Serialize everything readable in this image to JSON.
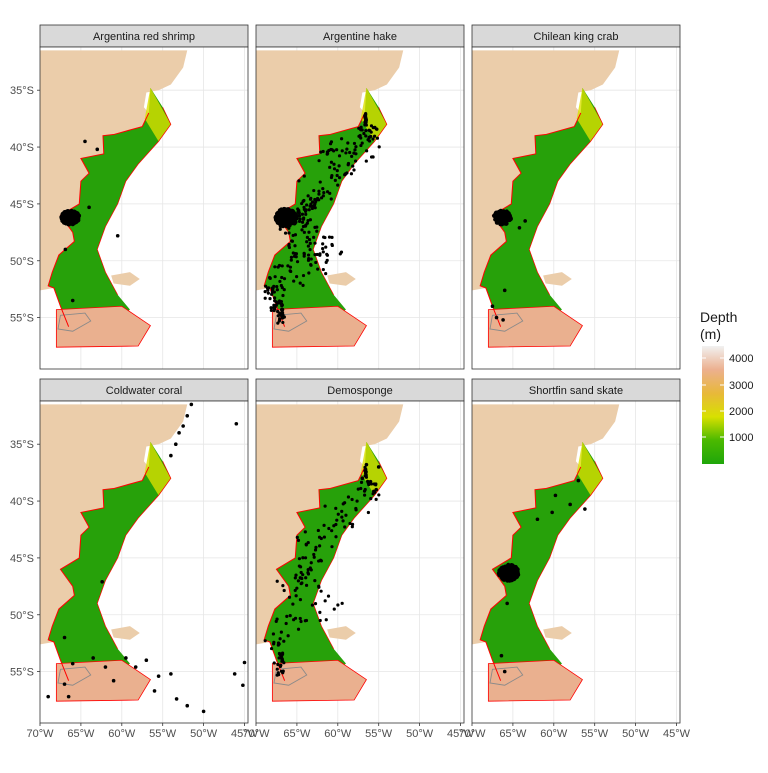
{
  "panels": [
    {
      "title": "Argentina red shrimp",
      "spread": "shrimp"
    },
    {
      "title": "Argentine hake",
      "spread": "hake"
    },
    {
      "title": "Chilean king crab",
      "spread": "crab"
    },
    {
      "title": "Coldwater coral",
      "spread": "coral"
    },
    {
      "title": "Demosponge",
      "spread": "sponge"
    },
    {
      "title": "Shortfin sand skate",
      "spread": "skate"
    }
  ],
  "lat_ticks": [
    "35°S",
    "40°S",
    "45°S",
    "50°S",
    "55°S"
  ],
  "lon_ticks": [
    "70°W",
    "65°W",
    "60°W",
    "55°W",
    "50°W",
    "45°W"
  ],
  "lon_ticks_row1": [
    "70°W",
    "65°W",
    "60°W",
    "55°W",
    "50°W",
    "45°W"
  ],
  "legend": {
    "title_line1": "Depth",
    "title_line2": "(m)",
    "ticks": [
      "4000",
      "3000",
      "2000",
      "1000"
    ],
    "color_stops": [
      "#1fa60a",
      "#4bb900",
      "#d8e000",
      "#e8b83a",
      "#ecb08f",
      "#f1f1f1"
    ]
  },
  "colors": {
    "land": "#ebcdaa",
    "shelf": "#27a10a",
    "shelf_break": "#dbe000",
    "deep": "#eab08f",
    "coast_line": "#ff0000",
    "strip_fill": "#d9d9d9",
    "points": "#000000"
  }
}
